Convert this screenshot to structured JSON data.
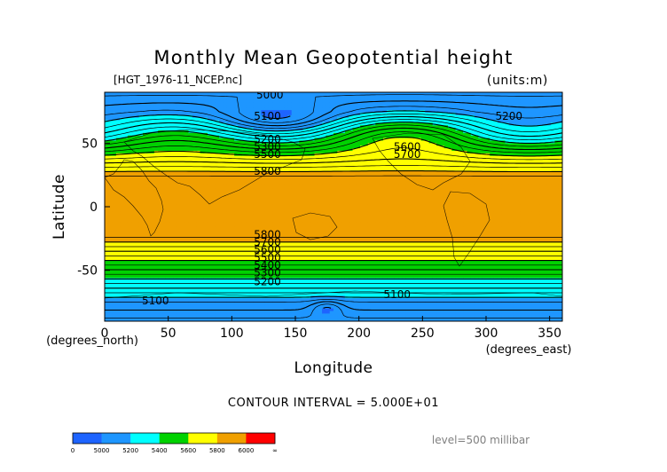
{
  "chart_data": {
    "type": "heatmap",
    "title": "Monthly Mean Geopotential height",
    "file_label": "[HGT_1976-11_NCEP.nc]",
    "units_label": "(units:m)",
    "xlabel": "Longitude",
    "ylabel": "Latitude",
    "x_unit_label": "(degrees_east)",
    "y_unit_label": "(degrees_north)",
    "xlim": [
      0,
      360
    ],
    "ylim": [
      -90,
      90
    ],
    "x_ticks": [
      0,
      50,
      100,
      150,
      200,
      250,
      300,
      350
    ],
    "y_ticks": [
      -50,
      0,
      50
    ],
    "contour_interval_text": "CONTOUR INTERVAL = 5.000E+01",
    "level_text": "level=500 millibar",
    "color_levels": [
      {
        "min": 0,
        "max": 5000,
        "color": "#1e64ff"
      },
      {
        "min": 5000,
        "max": 5200,
        "color": "#1e96ff"
      },
      {
        "min": 5200,
        "max": 5400,
        "color": "#00ffff"
      },
      {
        "min": 5400,
        "max": 5600,
        "color": "#00d200"
      },
      {
        "min": 5600,
        "max": 5800,
        "color": "#ffff00"
      },
      {
        "min": 5800,
        "max": 6000,
        "color": "#f0a000"
      },
      {
        "min": 6000,
        "max": 99999,
        "color": "#ff0000"
      }
    ],
    "colorbar_ticks": [
      "0",
      "5000",
      "5200",
      "5400",
      "5600",
      "5800",
      "6000",
      "∞"
    ],
    "contour_labels": [
      {
        "lon": 130,
        "lat": 88,
        "text": "5000"
      },
      {
        "lon": 128,
        "lat": 71,
        "text": "5100"
      },
      {
        "lon": 318,
        "lat": 71,
        "text": "5200"
      },
      {
        "lon": 128,
        "lat": 53,
        "text": "5200"
      },
      {
        "lon": 128,
        "lat": 47,
        "text": "5300"
      },
      {
        "lon": 128,
        "lat": 41,
        "text": "5500"
      },
      {
        "lon": 238,
        "lat": 47,
        "text": "5600"
      },
      {
        "lon": 238,
        "lat": 41,
        "text": "5700"
      },
      {
        "lon": 128,
        "lat": 28,
        "text": "5800"
      },
      {
        "lon": 128,
        "lat": -22,
        "text": "5800"
      },
      {
        "lon": 128,
        "lat": -28,
        "text": "5700"
      },
      {
        "lon": 128,
        "lat": -34,
        "text": "5600"
      },
      {
        "lon": 128,
        "lat": -40,
        "text": "5500"
      },
      {
        "lon": 128,
        "lat": -46,
        "text": "5400"
      },
      {
        "lon": 128,
        "lat": -52,
        "text": "5300"
      },
      {
        "lon": 128,
        "lat": -59,
        "text": "5200"
      },
      {
        "lon": 230,
        "lat": -69,
        "text": "5100"
      },
      {
        "lon": 40,
        "lat": -74,
        "text": "5100"
      }
    ]
  }
}
